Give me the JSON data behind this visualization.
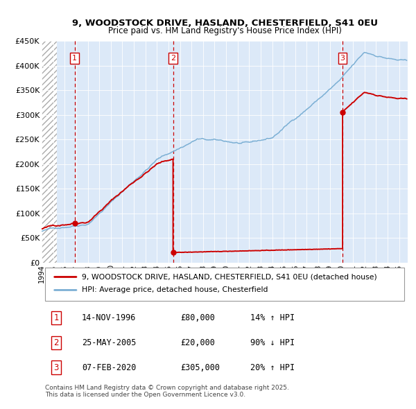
{
  "title1": "9, WOODSTOCK DRIVE, HASLAND, CHESTERFIELD, S41 0EU",
  "title2": "Price paid vs. HM Land Registry's House Price Index (HPI)",
  "plot_bg": "#dce9f8",
  "grid_color": "#ffffff",
  "red_line_color": "#cc0000",
  "blue_line_color": "#7bafd4",
  "sale1_date": 1996.87,
  "sale1_price": 80000,
  "sale2_date": 2005.4,
  "sale2_price": 20000,
  "sale3_date": 2020.1,
  "sale3_price": 305000,
  "sale2_peak": 210000,
  "sale3_floor": 28000,
  "xmin": 1994.0,
  "xmax": 2025.75,
  "ymin": 0,
  "ymax": 450000,
  "yticks": [
    0,
    50000,
    100000,
    150000,
    200000,
    250000,
    300000,
    350000,
    400000,
    450000
  ],
  "ytick_labels": [
    "£0",
    "£50K",
    "£100K",
    "£150K",
    "£200K",
    "£250K",
    "£300K",
    "£350K",
    "£400K",
    "£450K"
  ],
  "legend_line1": "9, WOODSTOCK DRIVE, HASLAND, CHESTERFIELD, S41 0EU (detached house)",
  "legend_line2": "HPI: Average price, detached house, Chesterfield",
  "table_rows": [
    {
      "num": "1",
      "date": "14-NOV-1996",
      "price": "£80,000",
      "hpi": "14% ↑ HPI"
    },
    {
      "num": "2",
      "date": "25-MAY-2005",
      "price": "£20,000",
      "hpi": "90% ↓ HPI"
    },
    {
      "num": "3",
      "date": "07-FEB-2020",
      "price": "£305,000",
      "hpi": "20% ↑ HPI"
    }
  ],
  "footer": "Contains HM Land Registry data © Crown copyright and database right 2025.\nThis data is licensed under the Open Government Licence v3.0."
}
